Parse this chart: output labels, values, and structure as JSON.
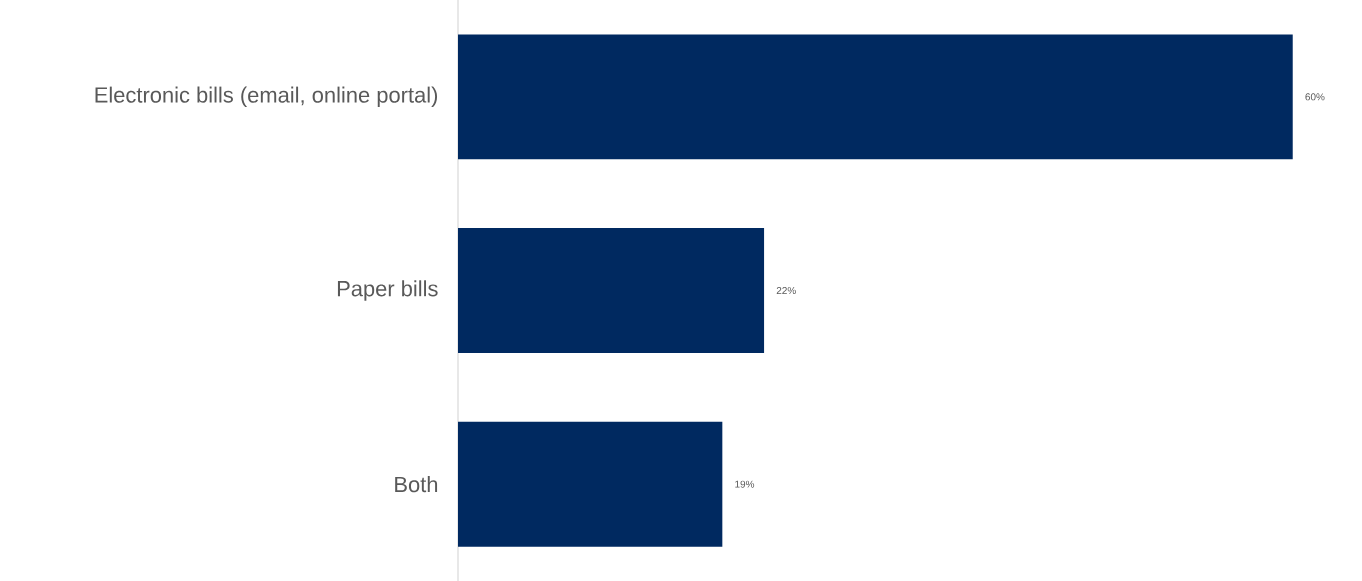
{
  "chart_data": {
    "type": "bar",
    "orientation": "horizontal",
    "categories": [
      "Electronic bills (email, online portal)",
      "Paper bills",
      "Both"
    ],
    "values": [
      60,
      22,
      19
    ],
    "value_labels": [
      "60%",
      "22%",
      "19%"
    ],
    "color": "#002960",
    "tick_labels": "y"
  }
}
